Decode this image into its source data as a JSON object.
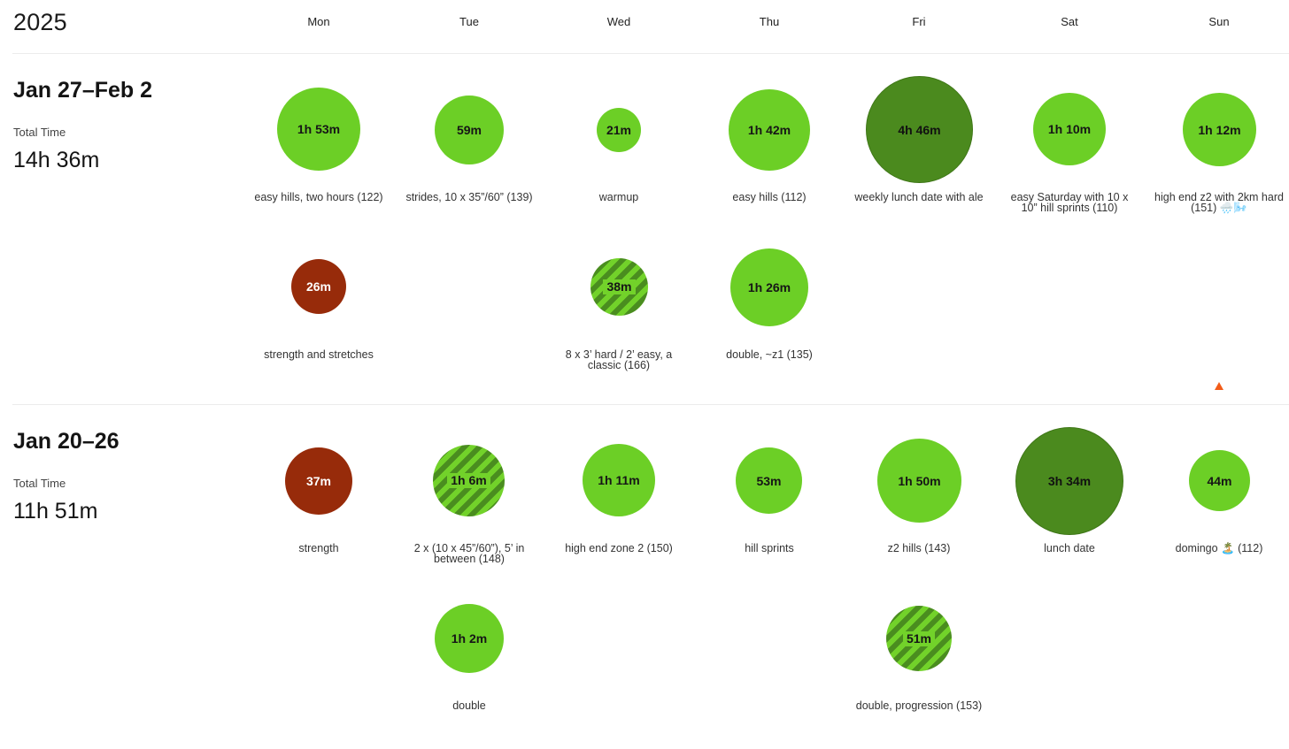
{
  "year": "2025",
  "days": [
    "Mon",
    "Tue",
    "Wed",
    "Thu",
    "Fri",
    "Sat",
    "Sun"
  ],
  "weeks": [
    {
      "title": "Jan 27–Feb 2",
      "total_label": "Total Time",
      "total_value": "14h 36m",
      "row1": [
        {
          "time": "1h 53m",
          "caption": "easy hills, two hours (122)"
        },
        {
          "time": "59m",
          "caption": "strides, 10 x 35”/60” (139)"
        },
        {
          "time": "21m",
          "caption": "warmup"
        },
        {
          "time": "1h 42m",
          "caption": "easy hills (112)"
        },
        {
          "time": "4h 46m",
          "caption": "weekly lunch date with ale"
        },
        {
          "time": "1h 10m",
          "caption": "easy Saturday with 10 x 10” hill sprints (110)"
        },
        {
          "time": "1h 12m",
          "caption": "high end z2 with 2km hard (151) 🌧️🌬️"
        }
      ],
      "row2": [
        {
          "time": "26m",
          "caption": "strength and stretches"
        },
        {
          "time": "38m",
          "caption": "8 x 3’ hard / 2’ easy, a classic (166)"
        },
        {
          "time": "1h 26m",
          "caption": "double, ~z1 (135)"
        }
      ]
    },
    {
      "title": "Jan 20–26",
      "total_label": "Total Time",
      "total_value": "11h 51m",
      "row1": [
        {
          "time": "37m",
          "caption": "strength"
        },
        {
          "time": "1h 6m",
          "caption": "2 x (10 x 45”/60”), 5’ in between (148)"
        },
        {
          "time": "1h 11m",
          "caption": "high end zone 2 (150)"
        },
        {
          "time": "53m",
          "caption": "hill sprints"
        },
        {
          "time": "1h 50m",
          "caption": "z2 hills (143)"
        },
        {
          "time": "3h 34m",
          "caption": "lunch date"
        },
        {
          "time": "44m",
          "caption": "domingo 🏝️ (112)"
        }
      ],
      "row2": [
        {
          "time": "1h 2m",
          "caption": "double"
        },
        {
          "time": "51m",
          "caption": "double, progression (153)"
        }
      ]
    }
  ],
  "colors": {
    "easy": "#6ccf26",
    "long": "#4b8a1e",
    "strength": "#972b0a",
    "hard_stripe_dark": "#4a8d1f",
    "hard_stripe_light": "#72d22a",
    "marker": "#f25c19"
  }
}
